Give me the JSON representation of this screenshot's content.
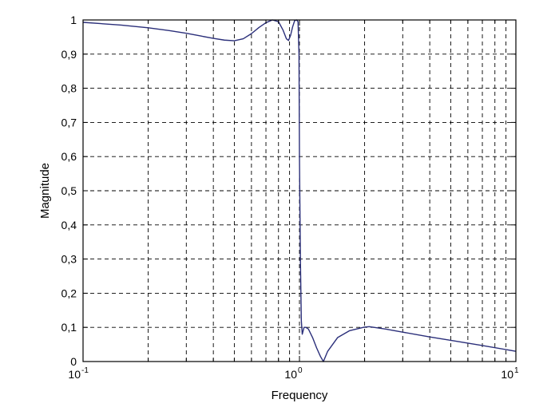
{
  "chart_data": {
    "type": "line",
    "title": "",
    "xlabel": "Frequency",
    "ylabel": "Magnitude",
    "xscale": "log",
    "xlim": [
      0.1,
      10
    ],
    "ylim": [
      0,
      1
    ],
    "grid": true,
    "line_color": "#2b2f7a",
    "x_ticks": [
      {
        "base": "10",
        "exp": "-1"
      },
      {
        "base": "10",
        "exp": "0"
      },
      {
        "base": "10",
        "exp": "1"
      }
    ],
    "y_ticks": [
      "0",
      "0,1",
      "0,2",
      "0,3",
      "0,4",
      "0,5",
      "0,6",
      "0,7",
      "0,8",
      "0,9",
      "1"
    ],
    "series": [
      {
        "x": [
          0.1,
          0.15,
          0.2,
          0.25,
          0.3,
          0.35,
          0.4,
          0.45,
          0.5,
          0.55,
          0.6,
          0.65,
          0.7,
          0.75,
          0.8,
          0.84,
          0.87,
          0.89,
          0.91,
          0.93,
          0.95,
          0.97,
          0.985,
          0.995,
          1.0,
          1.01,
          1.02,
          1.03,
          1.04,
          1.05,
          1.07,
          1.1,
          1.15,
          1.2,
          1.25,
          1.29,
          1.35,
          1.5,
          1.7,
          2.0,
          2.1,
          2.5,
          3.0,
          4.0,
          5.0,
          7.0,
          10.0
        ],
        "y": [
          0.993,
          0.985,
          0.977,
          0.969,
          0.961,
          0.953,
          0.946,
          0.941,
          0.939,
          0.945,
          0.96,
          0.978,
          0.992,
          1.0,
          0.995,
          0.97,
          0.945,
          0.94,
          0.955,
          0.98,
          0.998,
          1.0,
          0.995,
          0.9,
          0.6,
          0.3,
          0.12,
          0.08,
          0.09,
          0.1,
          0.1,
          0.095,
          0.07,
          0.04,
          0.015,
          0.0,
          0.03,
          0.07,
          0.09,
          0.101,
          0.102,
          0.095,
          0.086,
          0.072,
          0.062,
          0.047,
          0.03
        ]
      }
    ]
  }
}
